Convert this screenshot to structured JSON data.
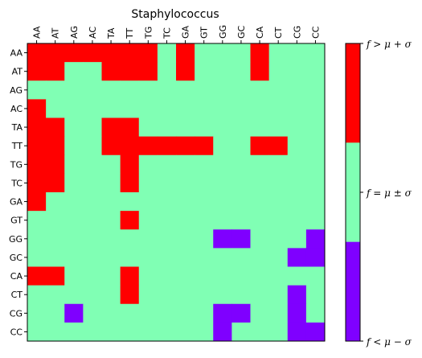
{
  "chart_data": {
    "type": "heatmap",
    "title": "Staphylococcus",
    "labels": [
      "AA",
      "AT",
      "AG",
      "AC",
      "TA",
      "TT",
      "TG",
      "TC",
      "GA",
      "GT",
      "GG",
      "GC",
      "CA",
      "CT",
      "CG",
      "CC"
    ],
    "matrix": [
      [
        2,
        2,
        2,
        2,
        2,
        2,
        2,
        1,
        2,
        1,
        1,
        1,
        2,
        1,
        1,
        1
      ],
      [
        2,
        2,
        1,
        1,
        2,
        2,
        2,
        1,
        2,
        1,
        1,
        1,
        2,
        1,
        1,
        1
      ],
      [
        1,
        1,
        1,
        1,
        1,
        1,
        1,
        1,
        1,
        1,
        1,
        1,
        1,
        1,
        1,
        1
      ],
      [
        2,
        1,
        1,
        1,
        1,
        1,
        1,
        1,
        1,
        1,
        1,
        1,
        1,
        1,
        1,
        1
      ],
      [
        2,
        2,
        1,
        1,
        2,
        2,
        1,
        1,
        1,
        1,
        1,
        1,
        1,
        1,
        1,
        1
      ],
      [
        2,
        2,
        1,
        1,
        2,
        2,
        2,
        2,
        2,
        2,
        1,
        1,
        2,
        2,
        1,
        1
      ],
      [
        2,
        2,
        1,
        1,
        1,
        2,
        1,
        1,
        1,
        1,
        1,
        1,
        1,
        1,
        1,
        1
      ],
      [
        2,
        2,
        1,
        1,
        1,
        2,
        1,
        1,
        1,
        1,
        1,
        1,
        1,
        1,
        1,
        1
      ],
      [
        2,
        1,
        1,
        1,
        1,
        1,
        1,
        1,
        1,
        1,
        1,
        1,
        1,
        1,
        1,
        1
      ],
      [
        1,
        1,
        1,
        1,
        1,
        2,
        1,
        1,
        1,
        1,
        1,
        1,
        1,
        1,
        1,
        1
      ],
      [
        1,
        1,
        1,
        1,
        1,
        1,
        1,
        1,
        1,
        1,
        0,
        0,
        1,
        1,
        1,
        0
      ],
      [
        1,
        1,
        1,
        1,
        1,
        1,
        1,
        1,
        1,
        1,
        1,
        1,
        1,
        1,
        0,
        0
      ],
      [
        2,
        2,
        1,
        1,
        1,
        2,
        1,
        1,
        1,
        1,
        1,
        1,
        1,
        1,
        1,
        1
      ],
      [
        1,
        1,
        1,
        1,
        1,
        2,
        1,
        1,
        1,
        1,
        1,
        1,
        1,
        1,
        0,
        1
      ],
      [
        1,
        1,
        0,
        1,
        1,
        1,
        1,
        1,
        1,
        1,
        0,
        0,
        1,
        1,
        0,
        1
      ],
      [
        1,
        1,
        1,
        1,
        1,
        1,
        1,
        1,
        1,
        1,
        0,
        1,
        1,
        1,
        0,
        0
      ]
    ],
    "categories": [
      "f < μ − σ",
      "f = μ ± σ",
      "f > μ + σ"
    ],
    "colors": [
      "#7f00ff",
      "#80ffb4",
      "#ff0000"
    ],
    "legend_placement": "right",
    "grid": false
  }
}
